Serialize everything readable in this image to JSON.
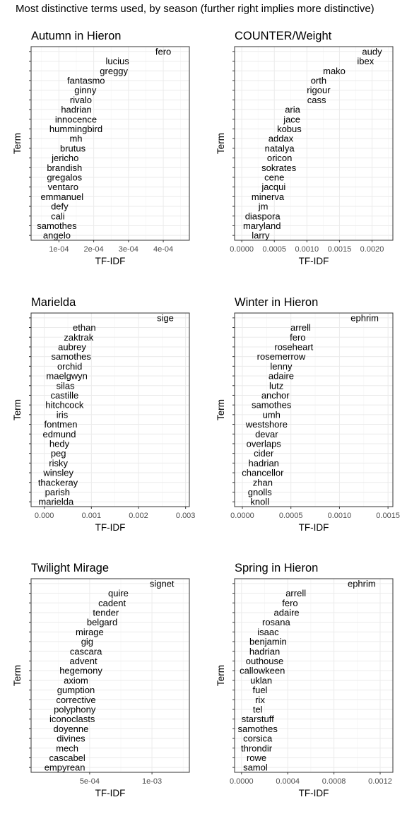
{
  "title": "Most distinctive terms used, by season (further right implies more distinctive)",
  "chart_data": [
    {
      "type": "scatter",
      "title": "Autumn in Hieron",
      "xlabel": "TF-IDF",
      "ylabel": "Term",
      "xlim": [
        2e-05,
        0.000475
      ],
      "xticks": [
        0.0001,
        0.0002,
        0.0003,
        0.0004
      ],
      "xtick_labels": [
        "1e-04",
        "2e-04",
        "3e-04",
        "4e-04"
      ],
      "grid": true,
      "points": [
        {
          "term": "fero",
          "value": 0.0004
        },
        {
          "term": "lucius",
          "value": 0.000268
        },
        {
          "term": "greggy",
          "value": 0.000258
        },
        {
          "term": "fantasmo",
          "value": 0.000178
        },
        {
          "term": "ginny",
          "value": 0.000176
        },
        {
          "term": "rivalo",
          "value": 0.000163
        },
        {
          "term": "hadrian",
          "value": 0.00015
        },
        {
          "term": "innocence",
          "value": 0.000149
        },
        {
          "term": "hummingbird",
          "value": 0.000149
        },
        {
          "term": "mh",
          "value": 0.000149
        },
        {
          "term": "brutus",
          "value": 0.00014
        },
        {
          "term": "jericho",
          "value": 0.000118
        },
        {
          "term": "brandish",
          "value": 0.000116
        },
        {
          "term": "gregalos",
          "value": 0.000116
        },
        {
          "term": "ventaro",
          "value": 0.000112
        },
        {
          "term": "emmanuel",
          "value": 0.000109
        },
        {
          "term": "defy",
          "value": 0.000102
        },
        {
          "term": "cali",
          "value": 9.7e-05
        },
        {
          "term": "samothes",
          "value": 9.4e-05
        },
        {
          "term": "angelo",
          "value": 9.4e-05
        }
      ]
    },
    {
      "type": "scatter",
      "title": "COUNTER/Weight",
      "xlabel": "TF-IDF",
      "ylabel": "Term",
      "xlim": [
        -0.00011,
        0.00232
      ],
      "xticks": [
        0.0,
        0.0005,
        0.001,
        0.0015,
        0.002
      ],
      "xtick_labels": [
        "0.0000",
        "0.0005",
        "0.0010",
        "0.0015",
        "0.0020"
      ],
      "grid": true,
      "points": [
        {
          "term": "audy",
          "value": 0.002
        },
        {
          "term": "ibex",
          "value": 0.0019
        },
        {
          "term": "mako",
          "value": 0.00142
        },
        {
          "term": "orth",
          "value": 0.00118
        },
        {
          "term": "rigour",
          "value": 0.00118
        },
        {
          "term": "cass",
          "value": 0.00115
        },
        {
          "term": "aria",
          "value": 0.00078
        },
        {
          "term": "jace",
          "value": 0.00077
        },
        {
          "term": "kobus",
          "value": 0.00073
        },
        {
          "term": "addax",
          "value": 0.0006
        },
        {
          "term": "natalya",
          "value": 0.00058
        },
        {
          "term": "oricon",
          "value": 0.00058
        },
        {
          "term": "sokrates",
          "value": 0.00057
        },
        {
          "term": "cene",
          "value": 0.0005
        },
        {
          "term": "jacqui",
          "value": 0.00049
        },
        {
          "term": "minerva",
          "value": 0.0004
        },
        {
          "term": "jm",
          "value": 0.00033
        },
        {
          "term": "diaspora",
          "value": 0.00032
        },
        {
          "term": "maryland",
          "value": 0.00031
        },
        {
          "term": "larry",
          "value": 0.00029
        }
      ]
    },
    {
      "type": "scatter",
      "title": "Marielda",
      "xlabel": "TF-IDF",
      "ylabel": "Term",
      "xlim": [
        -0.00028,
        0.00308
      ],
      "xticks": [
        0.0,
        0.001,
        0.002,
        0.003
      ],
      "xtick_labels": [
        "0.000",
        "0.001",
        "0.002",
        "0.003"
      ],
      "grid": true,
      "points": [
        {
          "term": "sige",
          "value": 0.00257
        },
        {
          "term": "ethan",
          "value": 0.00085
        },
        {
          "term": "zaktrak",
          "value": 0.00073
        },
        {
          "term": "aubrey",
          "value": 0.00059
        },
        {
          "term": "samothes",
          "value": 0.00057
        },
        {
          "term": "orchid",
          "value": 0.00054
        },
        {
          "term": "maelgwyn",
          "value": 0.00048
        },
        {
          "term": "silas",
          "value": 0.00045
        },
        {
          "term": "castille",
          "value": 0.00043
        },
        {
          "term": "hitchcock",
          "value": 0.00043
        },
        {
          "term": "iris",
          "value": 0.00038
        },
        {
          "term": "fontmen",
          "value": 0.00035
        },
        {
          "term": "edmund",
          "value": 0.00032
        },
        {
          "term": "hedy",
          "value": 0.00032
        },
        {
          "term": "peg",
          "value": 0.0003
        },
        {
          "term": "risky",
          "value": 0.0003
        },
        {
          "term": "winsley",
          "value": 0.0003
        },
        {
          "term": "thackeray",
          "value": 0.00029
        },
        {
          "term": "parish",
          "value": 0.00028
        },
        {
          "term": "marielda",
          "value": 0.00025
        }
      ]
    },
    {
      "type": "scatter",
      "title": "Winter in Hieron",
      "xlabel": "TF-IDF",
      "ylabel": "Term",
      "xlim": [
        -8e-05,
        0.00155
      ],
      "xticks": [
        0.0,
        0.0005,
        0.001,
        0.0015
      ],
      "xtick_labels": [
        "0.0000",
        "0.0005",
        "0.0010",
        "0.0015"
      ],
      "grid": true,
      "points": [
        {
          "term": "ephrim",
          "value": 0.00126
        },
        {
          "term": "arrell",
          "value": 0.0006
        },
        {
          "term": "fero",
          "value": 0.00057
        },
        {
          "term": "roseheart",
          "value": 0.00053
        },
        {
          "term": "rosemerrow",
          "value": 0.0004
        },
        {
          "term": "lenny",
          "value": 0.0004
        },
        {
          "term": "adaire",
          "value": 0.0004
        },
        {
          "term": "lutz",
          "value": 0.00035
        },
        {
          "term": "anchor",
          "value": 0.00034
        },
        {
          "term": "samothes",
          "value": 0.0003
        },
        {
          "term": "umh",
          "value": 0.0003
        },
        {
          "term": "westshore",
          "value": 0.00025
        },
        {
          "term": "devar",
          "value": 0.00025
        },
        {
          "term": "overlaps",
          "value": 0.00022
        },
        {
          "term": "cider",
          "value": 0.00022
        },
        {
          "term": "hadrian",
          "value": 0.00022
        },
        {
          "term": "chancellor",
          "value": 0.00021
        },
        {
          "term": "zhan",
          "value": 0.00021
        },
        {
          "term": "gnolls",
          "value": 0.00018
        },
        {
          "term": "knoll",
          "value": 0.00018
        }
      ]
    },
    {
      "type": "scatter",
      "title": "Twilight Mirage",
      "xlabel": "TF-IDF",
      "ylabel": "Term",
      "xlim": [
        3e-05,
        0.0013
      ],
      "xticks": [
        0.0005,
        0.001
      ],
      "xtick_labels": [
        "5e-04",
        "1e-03"
      ],
      "grid": true,
      "points": [
        {
          "term": "signet",
          "value": 0.00108
        },
        {
          "term": "quire",
          "value": 0.00073
        },
        {
          "term": "cadent",
          "value": 0.00068
        },
        {
          "term": "tender",
          "value": 0.00063
        },
        {
          "term": "belgard",
          "value": 0.0006
        },
        {
          "term": "mirage",
          "value": 0.0005
        },
        {
          "term": "gig",
          "value": 0.00048
        },
        {
          "term": "cascara",
          "value": 0.00047
        },
        {
          "term": "advent",
          "value": 0.00045
        },
        {
          "term": "hegemony",
          "value": 0.00043
        },
        {
          "term": "axiom",
          "value": 0.00039
        },
        {
          "term": "gumption",
          "value": 0.00039
        },
        {
          "term": "corrective",
          "value": 0.00039
        },
        {
          "term": "polyphony",
          "value": 0.00038
        },
        {
          "term": "iconoclasts",
          "value": 0.00036
        },
        {
          "term": "doyenne",
          "value": 0.00035
        },
        {
          "term": "divines",
          "value": 0.00035
        },
        {
          "term": "mech",
          "value": 0.00032
        },
        {
          "term": "cascabel",
          "value": 0.00032
        },
        {
          "term": "empyrean",
          "value": 0.0003
        }
      ]
    },
    {
      "type": "scatter",
      "title": "Spring in Hieron",
      "xlabel": "TF-IDF",
      "ylabel": "Term",
      "xlim": [
        -6e-05,
        0.00131
      ],
      "xticks": [
        0.0,
        0.0004,
        0.0008,
        0.0012
      ],
      "xtick_labels": [
        "0.0000",
        "0.0004",
        "0.0008",
        "0.0012"
      ],
      "grid": true,
      "points": [
        {
          "term": "ephrim",
          "value": 0.00104
        },
        {
          "term": "arrell",
          "value": 0.00047
        },
        {
          "term": "fero",
          "value": 0.00042
        },
        {
          "term": "adaire",
          "value": 0.00039
        },
        {
          "term": "rosana",
          "value": 0.0003
        },
        {
          "term": "isaac",
          "value": 0.00023
        },
        {
          "term": "benjamin",
          "value": 0.00023
        },
        {
          "term": "hadrian",
          "value": 0.0002
        },
        {
          "term": "outhouse",
          "value": 0.0002
        },
        {
          "term": "callowkeen",
          "value": 0.00018
        },
        {
          "term": "uklan",
          "value": 0.00017
        },
        {
          "term": "fuel",
          "value": 0.00016
        },
        {
          "term": "rix",
          "value": 0.00016
        },
        {
          "term": "tel",
          "value": 0.00014
        },
        {
          "term": "starstuff",
          "value": 0.00014
        },
        {
          "term": "samothes",
          "value": 0.00014
        },
        {
          "term": "corsica",
          "value": 0.00014
        },
        {
          "term": "throndir",
          "value": 0.00013
        },
        {
          "term": "rowe",
          "value": 0.00013
        },
        {
          "term": "samol",
          "value": 0.00012
        }
      ]
    }
  ]
}
